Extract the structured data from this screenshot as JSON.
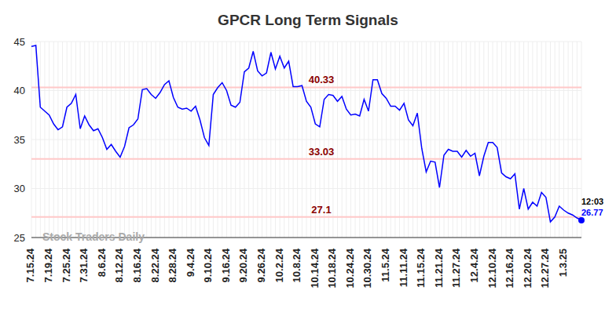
{
  "chart_data": {
    "type": "line",
    "title": "GPCR Long Term Signals",
    "watermark": "Stock Traders Daily",
    "categories": [
      "7.15.24",
      null,
      null,
      null,
      "7.19.24",
      null,
      null,
      null,
      "7.25.24",
      null,
      null,
      null,
      "7.31.24",
      null,
      null,
      null,
      "8.6.24",
      null,
      null,
      null,
      "8.12.24",
      null,
      null,
      null,
      "8.16.24",
      null,
      null,
      null,
      "8.22.24",
      null,
      null,
      null,
      "8.28.24",
      null,
      null,
      null,
      "9.4.24",
      null,
      null,
      null,
      "9.10.24",
      null,
      null,
      null,
      "9.16.24",
      null,
      null,
      null,
      "9.20.24",
      null,
      null,
      null,
      "9.26.24",
      null,
      null,
      null,
      "10.2.24",
      null,
      null,
      null,
      "10.8.24",
      null,
      null,
      null,
      "10.14.24",
      null,
      null,
      null,
      "10.18.24",
      null,
      null,
      null,
      "10.24.24",
      null,
      null,
      null,
      "10.30.24",
      null,
      null,
      null,
      "11.5.24",
      null,
      null,
      null,
      "11.11.24",
      null,
      null,
      null,
      "11.15.24",
      null,
      null,
      null,
      "11.21.24",
      null,
      null,
      null,
      "11.27.24",
      null,
      null,
      null,
      "12.4.24",
      null,
      null,
      null,
      "12.10.24",
      null,
      null,
      null,
      "12.16.24",
      null,
      null,
      null,
      "12.20.24",
      null,
      null,
      null,
      "12.27.24",
      null,
      null,
      null,
      "1.3.25",
      null,
      null,
      null,
      null
    ],
    "values": [
      44.5,
      44.6,
      38.3,
      37.9,
      37.5,
      36.6,
      36.0,
      36.3,
      38.3,
      38.7,
      39.6,
      36.1,
      37.4,
      36.5,
      35.9,
      36.1,
      35.2,
      34.0,
      34.5,
      33.8,
      33.2,
      34.3,
      36.2,
      36.5,
      37.1,
      40.1,
      40.2,
      39.6,
      39.2,
      39.8,
      40.6,
      41.0,
      39.3,
      38.3,
      38.1,
      38.2,
      37.9,
      38.4,
      37.0,
      35.2,
      34.4,
      39.6,
      40.3,
      40.8,
      40.0,
      38.5,
      38.3,
      38.8,
      41.9,
      42.3,
      44.0,
      42.0,
      41.5,
      41.8,
      43.9,
      42.2,
      43.5,
      42.3,
      43.0,
      40.4,
      40.4,
      40.5,
      38.9,
      38.3,
      36.6,
      36.3,
      39.1,
      39.6,
      39.5,
      38.9,
      39.4,
      38.1,
      37.5,
      37.6,
      37.4,
      39.1,
      37.9,
      41.1,
      41.1,
      39.7,
      39.2,
      38.4,
      38.4,
      38.0,
      38.7,
      37.0,
      36.4,
      37.7,
      34.1,
      31.7,
      32.8,
      32.7,
      30.1,
      33.4,
      34.0,
      33.8,
      33.8,
      33.2,
      33.9,
      33.3,
      33.6,
      31.3,
      33.3,
      34.7,
      34.7,
      34.2,
      31.6,
      31.2,
      31.0,
      31.5,
      27.9,
      30.0,
      27.9,
      28.6,
      28.2,
      29.6,
      29.1,
      26.6,
      27.1,
      28.2,
      27.8,
      27.5,
      27.3,
      27.0,
      26.77
    ],
    "color": "#0000ff",
    "ylim": [
      25,
      45
    ],
    "yticks": [
      25,
      30,
      35,
      40,
      45
    ],
    "grid": true,
    "annotations": [
      {
        "y": 40.33,
        "label": "40.33"
      },
      {
        "y": 33.03,
        "label": "33.03"
      },
      {
        "y": 27.1,
        "label": "27.1"
      }
    ],
    "last_label": {
      "time": "12:03",
      "value": 26.77
    }
  }
}
